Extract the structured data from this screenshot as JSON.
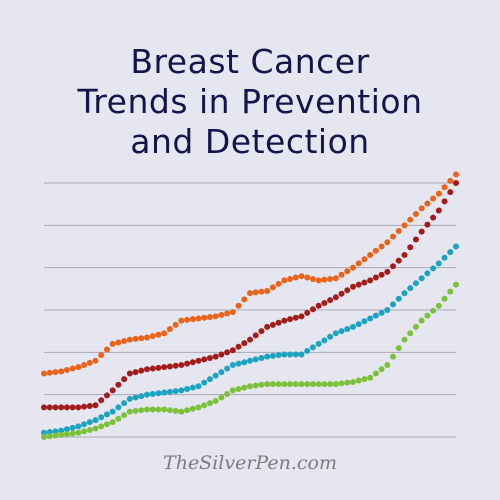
{
  "title_lines": [
    "Breast Cancer",
    "Trends in Prevention",
    "and Detection"
  ],
  "watermark": "TheSilverPen.com",
  "chart_data": {
    "type": "line",
    "style": "dotted",
    "title": "Breast Cancer Trends in Prevention and Detection",
    "xlabel": "",
    "ylabel": "",
    "ylim": [
      0,
      6
    ],
    "grid": true,
    "legend": "none",
    "x": [
      0,
      1,
      2,
      3,
      4,
      5,
      6,
      7,
      8,
      9,
      10,
      11,
      12,
      13,
      14,
      15,
      16,
      17,
      18,
      19,
      20,
      21,
      22,
      23,
      24
    ],
    "series": [
      {
        "color": "#e8641a",
        "values": [
          1.5,
          1.55,
          1.65,
          1.8,
          2.2,
          2.3,
          2.35,
          2.45,
          2.75,
          2.8,
          2.85,
          2.95,
          3.4,
          3.45,
          3.7,
          3.8,
          3.7,
          3.75,
          4.0,
          4.3,
          4.6,
          5.0,
          5.4,
          5.75,
          6.2
        ]
      },
      {
        "color": "#a31c1c",
        "values": [
          0.7,
          0.7,
          0.7,
          0.75,
          1.1,
          1.5,
          1.6,
          1.65,
          1.7,
          1.8,
          1.9,
          2.05,
          2.3,
          2.6,
          2.75,
          2.85,
          3.1,
          3.3,
          3.55,
          3.7,
          3.9,
          4.3,
          4.85,
          5.35,
          6.0
        ]
      },
      {
        "color": "#1ba3c0",
        "values": [
          0.1,
          0.15,
          0.25,
          0.4,
          0.6,
          0.9,
          1.0,
          1.05,
          1.1,
          1.2,
          1.45,
          1.7,
          1.8,
          1.9,
          1.95,
          1.95,
          2.2,
          2.45,
          2.6,
          2.8,
          3.0,
          3.4,
          3.75,
          4.1,
          4.5
        ]
      },
      {
        "color": "#7dc13a",
        "values": [
          0.0,
          0.05,
          0.1,
          0.2,
          0.35,
          0.6,
          0.65,
          0.65,
          0.6,
          0.7,
          0.85,
          1.1,
          1.2,
          1.25,
          1.25,
          1.25,
          1.25,
          1.25,
          1.3,
          1.4,
          1.7,
          2.3,
          2.75,
          3.1,
          3.6
        ]
      }
    ]
  }
}
